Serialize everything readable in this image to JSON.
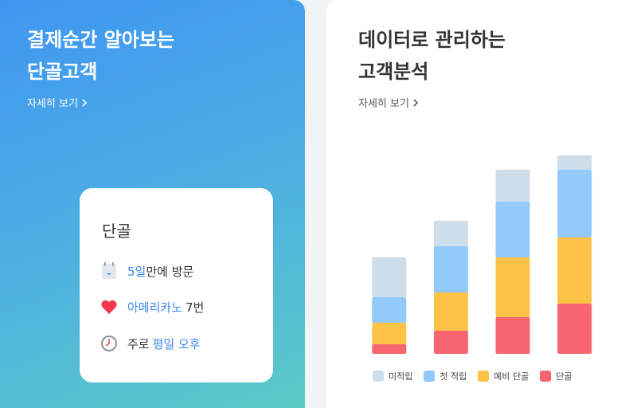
{
  "left_card": {
    "title_lines": [
      "결제순간 알아보는",
      "단골고객"
    ],
    "link": "자세히 보기",
    "customer_card": {
      "title": "단골",
      "items": [
        {
          "highlight": "5일",
          "text": "만에 방문"
        },
        {
          "highlight": "아메리카노",
          "text": "7번"
        },
        {
          "text": "주로",
          "highlight": "평일 오후"
        }
      ]
    }
  },
  "right_card": {
    "title_lines": [
      "데이터로 관리하는",
      "고객분석"
    ],
    "link": "자세히 보기"
  },
  "chart_data": {
    "type": "bar",
    "stacked": true,
    "categories": [
      null,
      null,
      null,
      null
    ],
    "series": [
      {
        "name": "미적립",
        "color": "#cddde9",
        "values": [
          50,
          32,
          40,
          18
        ]
      },
      {
        "name": "첫 적립",
        "color": "#93c9fb",
        "values": [
          32,
          58,
          70,
          85
        ]
      },
      {
        "name": "예비 단골",
        "color": "#fdc246",
        "values": [
          27,
          48,
          75,
          83
        ]
      },
      {
        "name": "단골",
        "color": "#f7666f",
        "values": [
          12,
          29,
          46,
          63
        ]
      }
    ]
  }
}
